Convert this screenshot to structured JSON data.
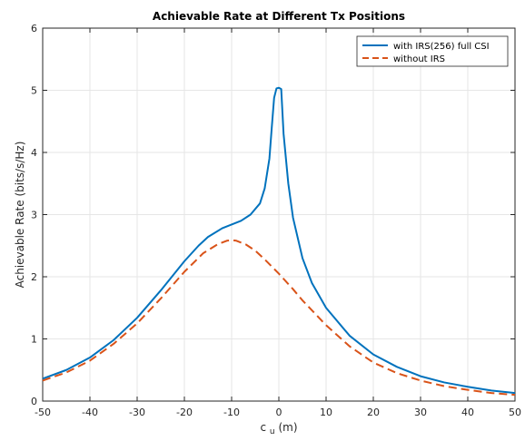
{
  "chart_data": {
    "type": "line",
    "title": "Achievable Rate at Different Tx Positions",
    "xlabel_main": "c",
    "xlabel_sub": "u",
    "xlabel_unit": " (m)",
    "ylabel": "Achievable Rate (bits/s/Hz)",
    "xlim": [
      -50,
      50
    ],
    "ylim": [
      0,
      6
    ],
    "xticks": [
      -50,
      -40,
      -30,
      -20,
      -10,
      0,
      10,
      20,
      30,
      40,
      50
    ],
    "yticks": [
      0,
      1,
      2,
      3,
      4,
      5,
      6
    ],
    "grid": true,
    "legend_position": "top-right",
    "series": [
      {
        "name": "with IRS(256) full CSI",
        "color": "#0072BD",
        "style": "solid",
        "x": [
          -50,
          -45,
          -40,
          -35,
          -30,
          -25,
          -20,
          -17,
          -15,
          -12,
          -10,
          -8,
          -6,
          -4,
          -3,
          -2,
          -1.5,
          -1,
          -0.5,
          0,
          0.5,
          1,
          2,
          3,
          5,
          7,
          10,
          15,
          20,
          25,
          30,
          35,
          40,
          45,
          50
        ],
        "y": [
          0.36,
          0.5,
          0.7,
          0.98,
          1.34,
          1.78,
          2.25,
          2.5,
          2.64,
          2.78,
          2.84,
          2.9,
          3.0,
          3.18,
          3.42,
          3.9,
          4.4,
          4.88,
          5.03,
          5.04,
          5.02,
          4.3,
          3.5,
          2.95,
          2.3,
          1.9,
          1.5,
          1.05,
          0.75,
          0.55,
          0.4,
          0.3,
          0.23,
          0.17,
          0.13
        ]
      },
      {
        "name": "without IRS",
        "color": "#D95319",
        "style": "dashed",
        "x": [
          -50,
          -45,
          -40,
          -35,
          -30,
          -25,
          -20,
          -16,
          -13,
          -11,
          -10,
          -9,
          -7,
          -5,
          -3,
          0,
          3,
          5,
          8,
          10,
          15,
          20,
          25,
          30,
          35,
          40,
          45,
          50
        ],
        "y": [
          0.33,
          0.46,
          0.65,
          0.92,
          1.25,
          1.65,
          2.08,
          2.38,
          2.52,
          2.58,
          2.59,
          2.58,
          2.52,
          2.42,
          2.28,
          2.05,
          1.8,
          1.62,
          1.38,
          1.22,
          0.88,
          0.62,
          0.45,
          0.33,
          0.24,
          0.18,
          0.13,
          0.1
        ]
      }
    ]
  }
}
